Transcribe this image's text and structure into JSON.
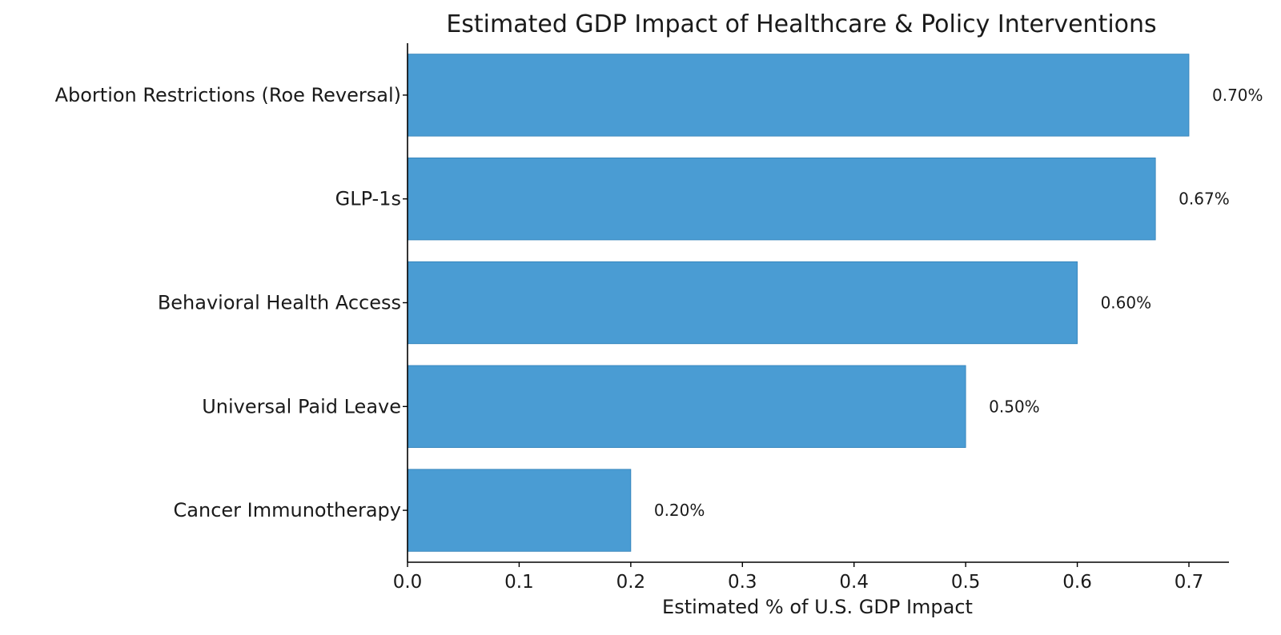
{
  "chart_data": {
    "type": "bar",
    "orientation": "horizontal",
    "title": "Estimated GDP Impact of Healthcare & Policy Interventions",
    "xlabel": "Estimated % of U.S. GDP Impact",
    "ylabel": "",
    "categories": [
      "Abortion Restrictions (Roe Reversal)",
      "GLP-1s",
      "Behavioral Health Access",
      "Universal Paid Leave",
      "Cancer Immunotherapy"
    ],
    "values": [
      0.7,
      0.67,
      0.6,
      0.5,
      0.2
    ],
    "data_labels": [
      "0.70%",
      "0.67%",
      "0.60%",
      "0.50%",
      "0.20%"
    ],
    "x_ticks": [
      "0.0",
      "0.1",
      "0.2",
      "0.3",
      "0.4",
      "0.5",
      "0.6",
      "0.7"
    ],
    "xlim": [
      0,
      0.735
    ],
    "grid": false,
    "legend": "none",
    "colors": {
      "bar": "#4a9cd3",
      "bar_edge": "#2f7fb8",
      "axis": "#000000",
      "text": "#1a1a1a"
    }
  }
}
